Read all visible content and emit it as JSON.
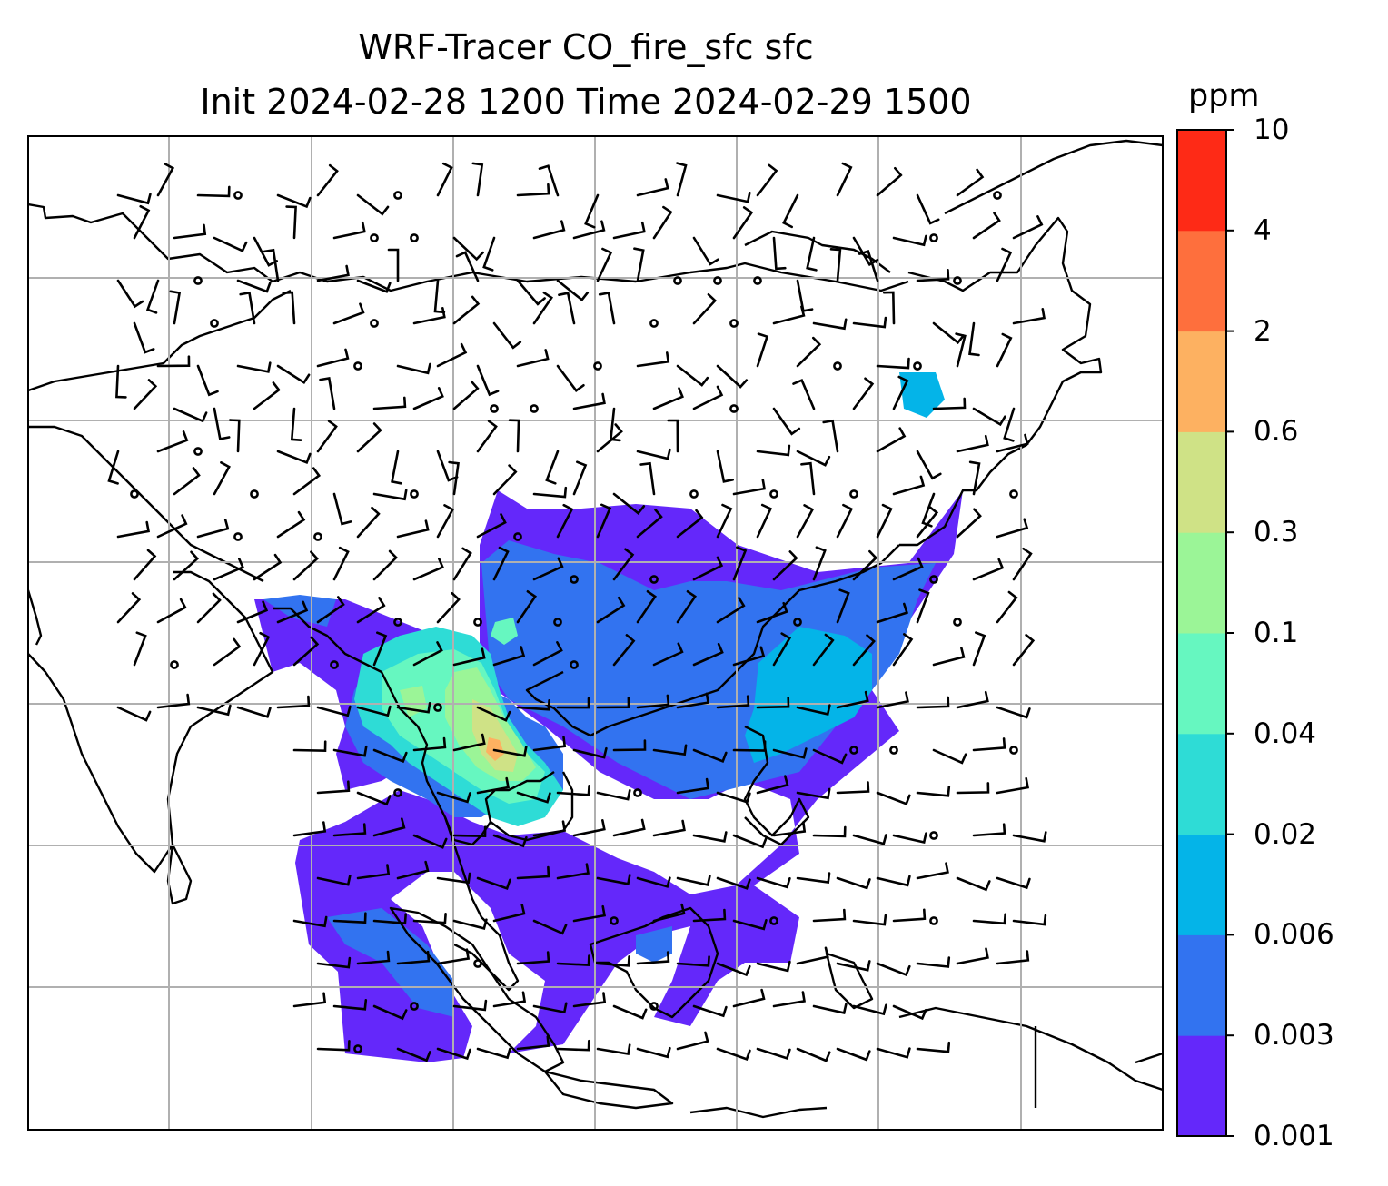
{
  "title": {
    "line1": "WRF-Tracer CO_fire_sfc sfc",
    "line2": "Init 2024-02-28 1200 Time 2024-02-29 1500"
  },
  "colorbar": {
    "unit": "ppm",
    "levels": [
      "0.001",
      "0.003",
      "0.006",
      "0.02",
      "0.04",
      "0.1",
      "0.3",
      "0.6",
      "2",
      "4",
      "10"
    ],
    "colors": [
      "#6428fa",
      "#3273f0",
      "#04b4e8",
      "#2edcd6",
      "#66f7c0",
      "#9bf597",
      "#cfe286",
      "#fdb161",
      "#fe6f3d",
      "#fe2a16"
    ]
  },
  "map": {
    "background": "#ffffff",
    "gridline_color": "#b0b0b0",
    "coastline_color": "#000000",
    "wind_barbs": true
  }
}
